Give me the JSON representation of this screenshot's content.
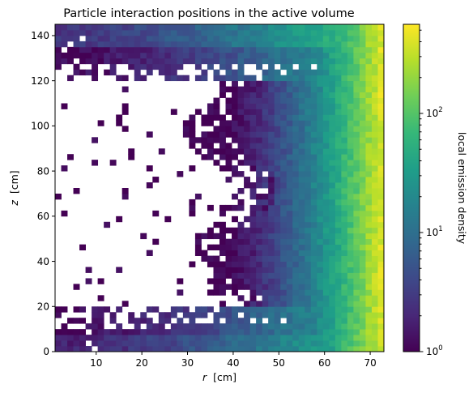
{
  "chart_data": {
    "type": "heatmap",
    "title": "Particle interaction positions in the active volume",
    "xlabel": {
      "var": "r",
      "unit": "[cm]"
    },
    "ylabel": {
      "var": "z",
      "unit": "[cm]"
    },
    "colorbar_label": "local emission density",
    "colormap": "viridis",
    "color_scale": "log",
    "xlim": [
      1,
      73
    ],
    "ylim": [
      0,
      145
    ],
    "clim": [
      1,
      560
    ],
    "bins": {
      "nx": 54,
      "ny": 58
    },
    "grid": false,
    "xticks": [
      10,
      20,
      30,
      40,
      50,
      60,
      70
    ],
    "xtick_labels": [
      "10",
      "20",
      "30",
      "40",
      "50",
      "60",
      "70"
    ],
    "yticks": [
      0,
      20,
      40,
      60,
      80,
      100,
      120,
      140
    ],
    "ytick_labels": [
      "0",
      "20",
      "40",
      "60",
      "80",
      "100",
      "120",
      "140"
    ],
    "colorbar_ticks": [
      1,
      10,
      100
    ],
    "colorbar_tick_labels": [
      {
        "base": "10",
        "exp": "0"
      },
      {
        "base": "10",
        "exp": "1"
      },
      {
        "base": "10",
        "exp": "2"
      }
    ],
    "density_model": "emission density rises with r from about 1 near r≈40 cm to about 500 at r≈72 cm; empty interior region for r<40 cm between z≈20 and z≈120 cm with sparse occupied bins; occupied bands near z<20 cm and z>120 cm",
    "colors": {
      "viridis_stops": [
        "#440154",
        "#482878",
        "#3e4989",
        "#31688e",
        "#26828e",
        "#1f9e89",
        "#35b779",
        "#6ece58",
        "#b5de2b",
        "#fde725"
      ]
    }
  }
}
